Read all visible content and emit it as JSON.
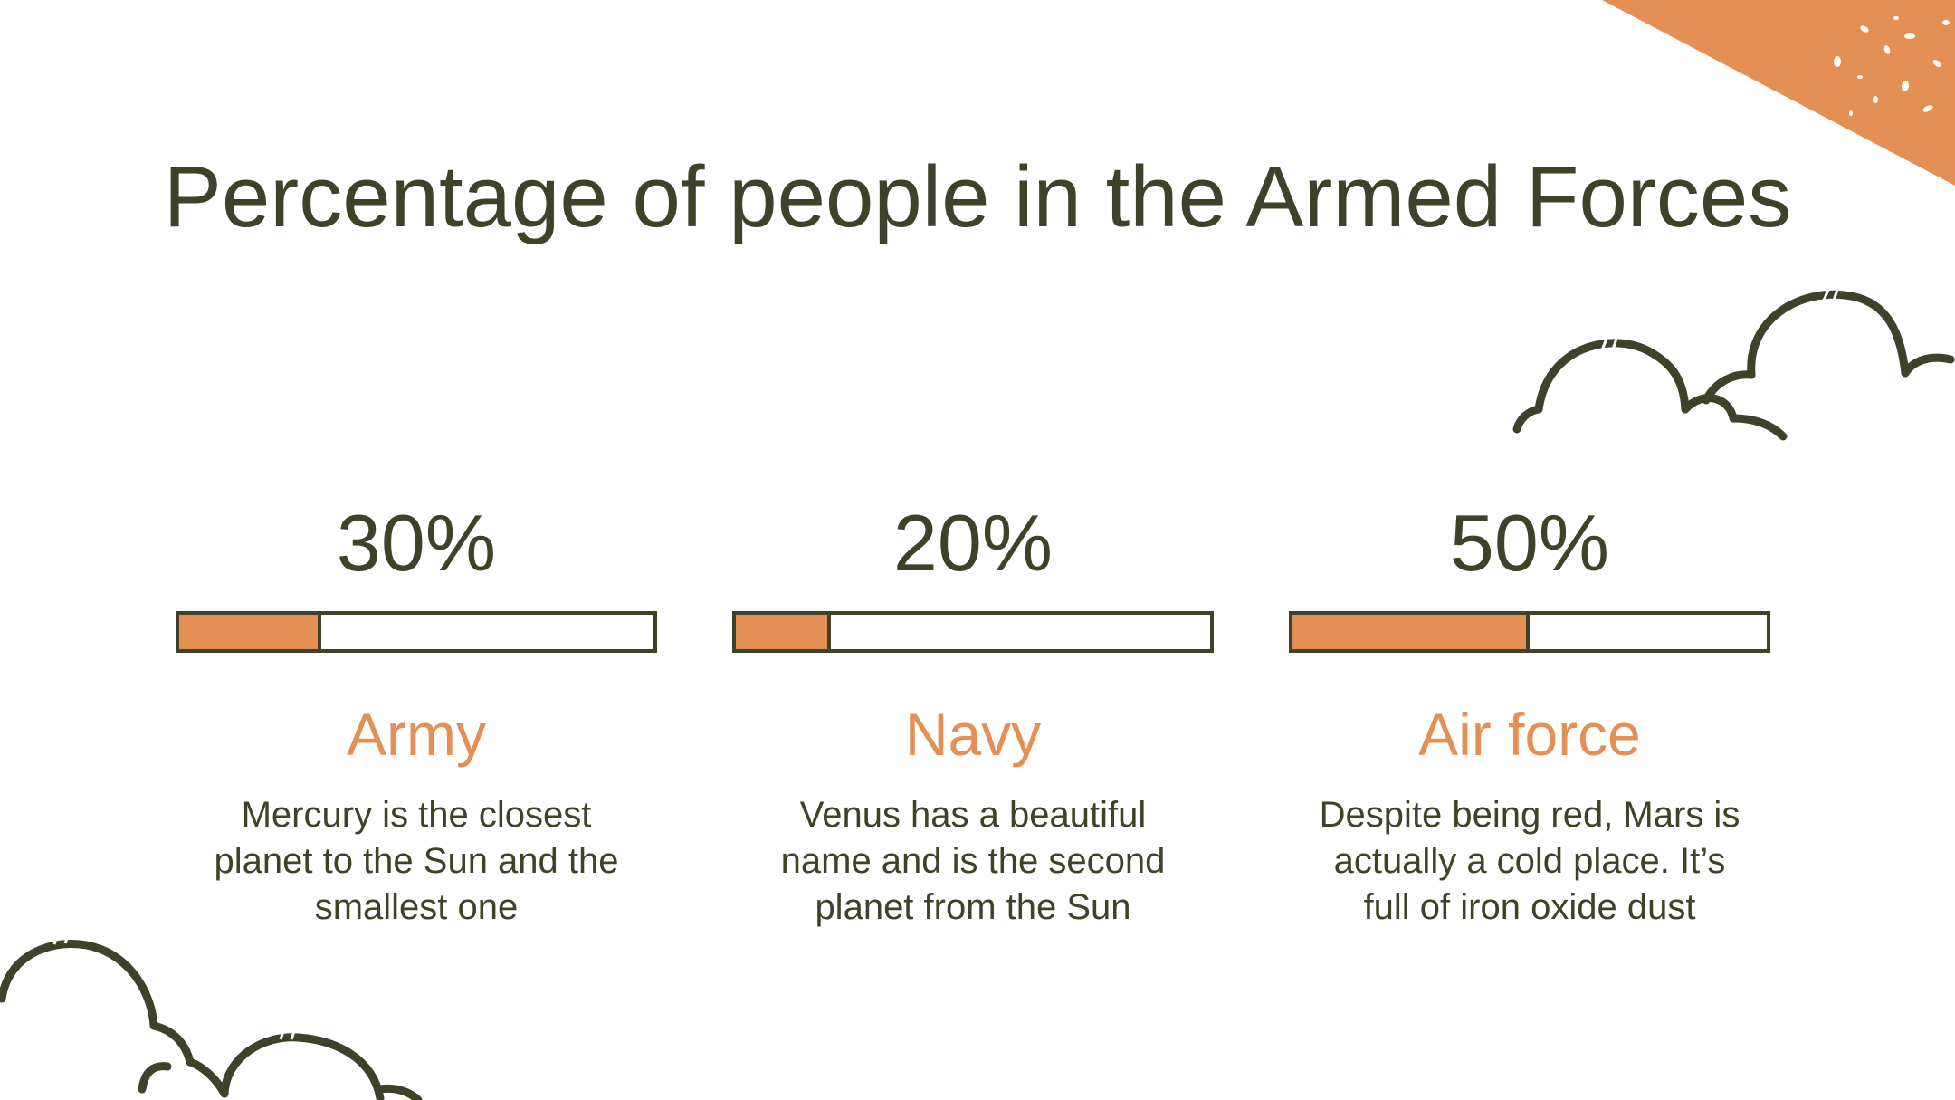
{
  "slide": {
    "title": "Percentage of people in the Armed Forces"
  },
  "colors": {
    "accent": "#e48f54",
    "text": "#3f4129",
    "background": "#ffffff"
  },
  "stats": [
    {
      "value_text": "30%",
      "fraction": 0.3,
      "label": "Army",
      "description": "Mercury is the closest planet to the Sun and the smallest one"
    },
    {
      "value_text": "20%",
      "fraction": 0.2,
      "label": "Navy",
      "description": "Venus has a beautiful name and is the second planet from the Sun"
    },
    {
      "value_text": "50%",
      "fraction": 0.5,
      "label": "Air force",
      "description": "Despite being red, Mars is actually a cold place. It’s full of iron oxide dust"
    }
  ]
}
